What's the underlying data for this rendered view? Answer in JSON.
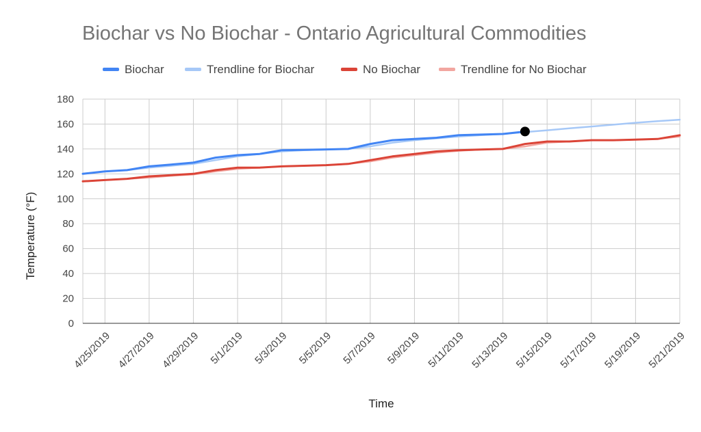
{
  "chart_data": {
    "type": "line",
    "title": "Biochar vs No Biochar - Ontario Agricultural Commodities",
    "xlabel": "Time",
    "ylabel": "Temperature (°F)",
    "ylim": [
      0,
      180
    ],
    "yticks": [
      "0",
      "20",
      "40",
      "60",
      "80",
      "100",
      "120",
      "140",
      "160",
      "180"
    ],
    "xlim": [
      "4/24/2019",
      "5/21/2019"
    ],
    "xticks": [
      "4/25/2019",
      "4/27/2019",
      "4/29/2019",
      "5/1/2019",
      "5/3/2019",
      "5/5/2019",
      "5/7/2019",
      "5/9/2019",
      "5/11/2019",
      "5/13/2019",
      "5/15/2019",
      "5/17/2019",
      "5/19/2019",
      "5/21/2019"
    ],
    "grid": true,
    "legend_position": "top",
    "legend": [
      {
        "label": "Biochar",
        "color": "#4285f4"
      },
      {
        "label": "Trendline for Biochar",
        "color": "#a6c8f7"
      },
      {
        "label": "No Biochar",
        "color": "#db4437"
      },
      {
        "label": "Trendline for No Biochar",
        "color": "#f2a6a0"
      }
    ],
    "series": [
      {
        "name": "Biochar",
        "color": "#4285f4",
        "x": [
          "4/24/2019",
          "4/25/2019",
          "4/26/2019",
          "4/27/2019",
          "4/28/2019",
          "4/29/2019",
          "4/30/2019",
          "5/1/2019",
          "5/2/2019",
          "5/3/2019",
          "5/4/2019",
          "5/5/2019",
          "5/6/2019",
          "5/7/2019",
          "5/8/2019",
          "5/9/2019",
          "5/10/2019",
          "5/11/2019",
          "5/12/2019",
          "5/13/2019",
          "5/14/2019"
        ],
        "y": [
          120,
          122,
          123,
          126,
          127.5,
          129,
          133,
          135,
          136,
          139,
          139.3,
          139.6,
          140,
          144,
          147,
          148,
          149,
          151,
          151.5,
          152,
          154
        ]
      },
      {
        "name": "Trendline for Biochar",
        "color": "#a6c8f7",
        "trendline": true,
        "x": [
          "4/24/2019",
          "4/25/2019",
          "4/26/2019",
          "4/27/2019",
          "4/28/2019",
          "4/29/2019",
          "4/30/2019",
          "5/1/2019",
          "5/2/2019",
          "5/3/2019",
          "5/4/2019",
          "5/5/2019",
          "5/6/2019",
          "5/7/2019",
          "5/8/2019",
          "5/9/2019",
          "5/10/2019",
          "5/11/2019",
          "5/12/2019",
          "5/13/2019",
          "5/14/2019",
          "5/15/2019",
          "5/16/2019",
          "5/17/2019",
          "5/18/2019",
          "5/19/2019",
          "5/20/2019",
          "5/21/2019"
        ],
        "y": [
          120,
          122,
          123,
          125,
          126.5,
          128,
          131,
          134,
          136,
          138,
          139,
          139.5,
          140,
          142,
          145,
          147,
          148.5,
          150,
          151,
          152,
          153.5,
          155,
          156.5,
          158,
          159.5,
          161,
          162.3,
          163.5
        ]
      },
      {
        "name": "No Biochar",
        "color": "#db4437",
        "x": [
          "4/24/2019",
          "4/25/2019",
          "4/26/2019",
          "4/27/2019",
          "4/28/2019",
          "4/29/2019",
          "4/30/2019",
          "5/1/2019",
          "5/2/2019",
          "5/3/2019",
          "5/4/2019",
          "5/5/2019",
          "5/6/2019",
          "5/7/2019",
          "5/8/2019",
          "5/9/2019",
          "5/10/2019",
          "5/11/2019",
          "5/12/2019",
          "5/13/2019",
          "5/14/2019",
          "5/15/2019",
          "5/16/2019",
          "5/17/2019",
          "5/18/2019",
          "5/19/2019",
          "5/20/2019",
          "5/21/2019"
        ],
        "y": [
          114,
          115,
          116,
          118,
          119,
          120,
          123,
          125,
          125,
          126,
          126.5,
          127,
          128,
          131,
          134,
          136,
          138,
          139,
          139.5,
          140,
          144,
          146,
          146,
          147,
          147,
          147.5,
          148,
          151
        ]
      },
      {
        "name": "Trendline for No Biochar",
        "color": "#f2a6a0",
        "trendline": true,
        "x": [
          "4/24/2019",
          "4/25/2019",
          "4/26/2019",
          "4/27/2019",
          "4/28/2019",
          "4/29/2019",
          "4/30/2019",
          "5/1/2019",
          "5/2/2019",
          "5/3/2019",
          "5/4/2019",
          "5/5/2019",
          "5/6/2019",
          "5/7/2019",
          "5/8/2019",
          "5/9/2019",
          "5/10/2019",
          "5/11/2019",
          "5/12/2019",
          "5/13/2019",
          "5/14/2019",
          "5/15/2019",
          "5/16/2019",
          "5/17/2019",
          "5/18/2019",
          "5/19/2019",
          "5/20/2019",
          "5/21/2019"
        ],
        "y": [
          114,
          115,
          116,
          117,
          118.5,
          119.5,
          122,
          124,
          125,
          126,
          126.5,
          127,
          128,
          130,
          133,
          135,
          137,
          138.5,
          139.5,
          140,
          142,
          145,
          146,
          147,
          147,
          147.5,
          148,
          150
        ]
      }
    ],
    "highlight_point": {
      "x": "5/14/2019",
      "y": 154,
      "color": "#000000"
    }
  }
}
